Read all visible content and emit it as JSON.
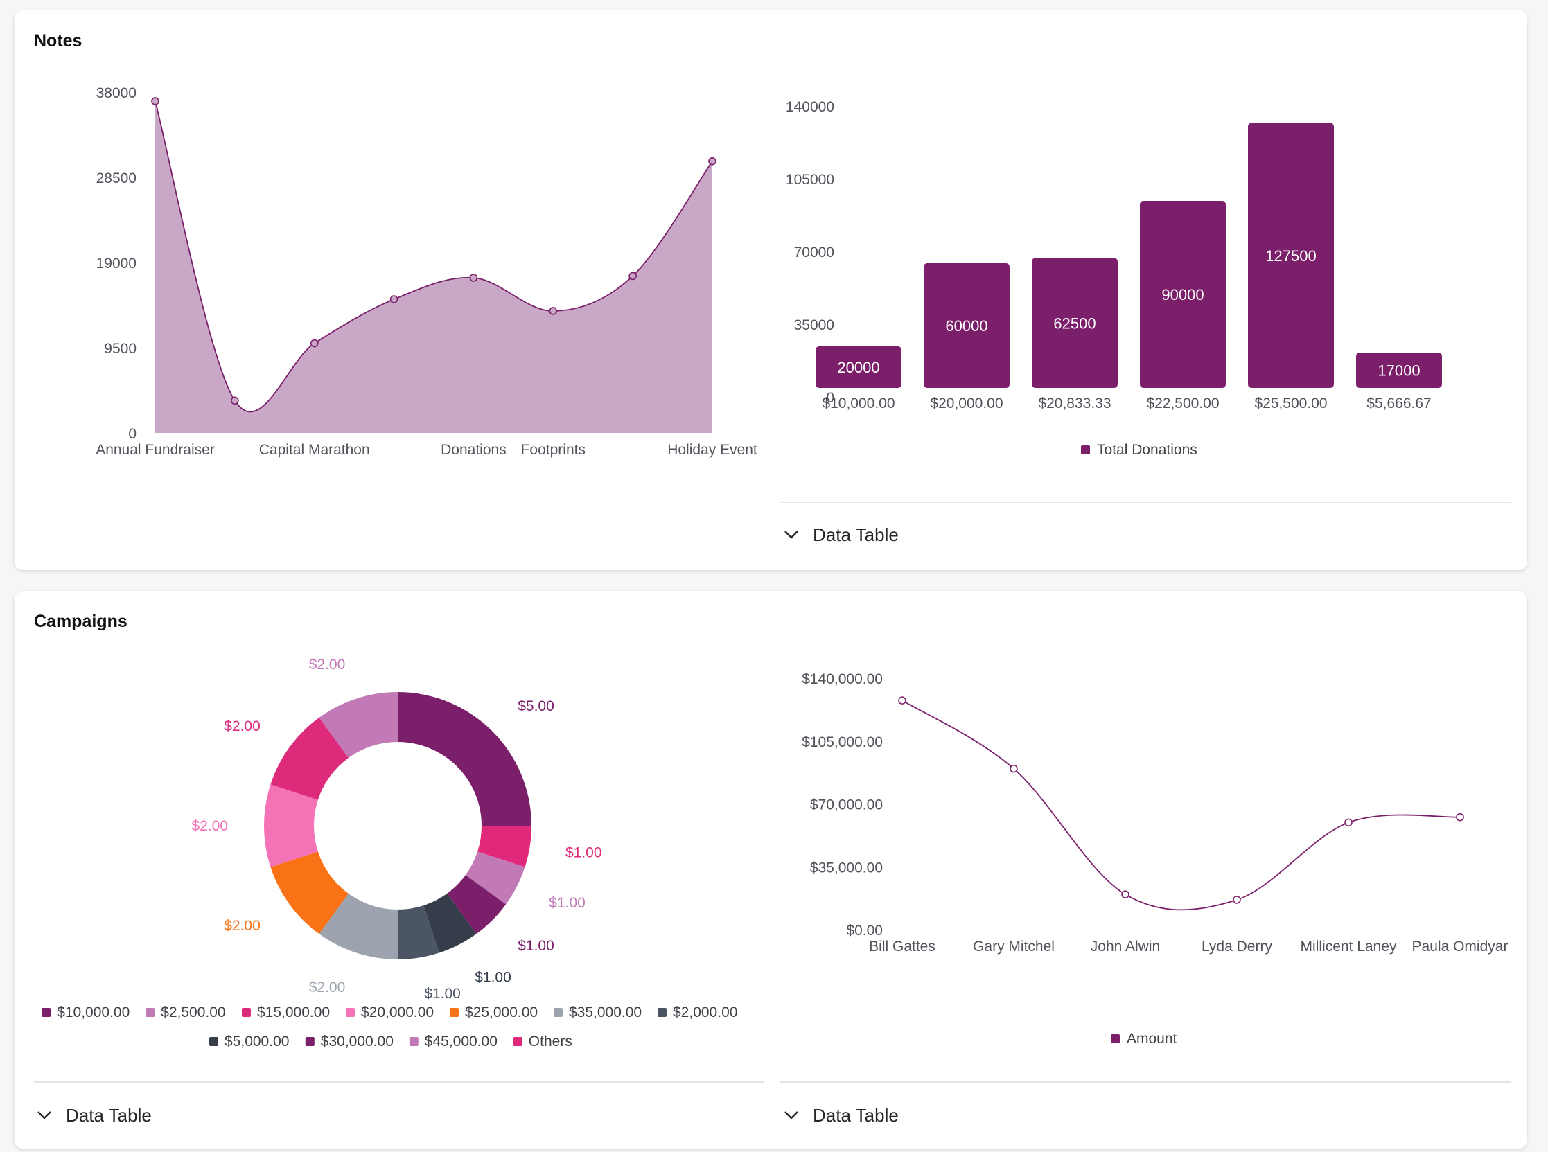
{
  "colors": {
    "plum": "#7b1f6a",
    "area_fill": "#c9a8c7",
    "axis_text": "#52525b"
  },
  "cards": {
    "notes": {
      "title": "Notes"
    },
    "campaigns": {
      "title": "Campaigns"
    }
  },
  "data_table_label": "Data Table",
  "chart_data": [
    {
      "id": "notes-area",
      "type": "area",
      "categories": [
        "Annual Fundraiser",
        "",
        "Capital Marathon",
        "",
        "Donations",
        "Footprints",
        "",
        "Holiday Event"
      ],
      "values": [
        37000,
        3600,
        10000,
        14900,
        17300,
        13600,
        17500,
        30300
      ],
      "y_ticks": [
        "0",
        "9500",
        "19000",
        "28500",
        "38000"
      ],
      "ylim": [
        0,
        38000
      ],
      "grid": false
    },
    {
      "id": "notes-bar",
      "type": "bar",
      "categories": [
        "$10,000.00",
        "$20,000.00",
        "$20,833.33",
        "$22,500.00",
        "$25,500.00",
        "$5,666.67"
      ],
      "values": [
        20000,
        60000,
        62500,
        90000,
        127500,
        17000
      ],
      "data_labels": [
        "20000",
        "60000",
        "62500",
        "90000",
        "127500",
        "17000"
      ],
      "y_ticks": [
        "0",
        "35000",
        "70000",
        "105000",
        "140000"
      ],
      "ylim": [
        0,
        140000
      ],
      "legend": {
        "position": "bottom",
        "entries": [
          "Total Donations"
        ]
      }
    },
    {
      "id": "campaigns-donut",
      "type": "pie",
      "slices": [
        {
          "label": "$10,000.00",
          "value": 5,
          "value_label": "$5.00",
          "color": "#7b1f6a"
        },
        {
          "label": "Others",
          "value": 1,
          "value_label": "$1.00",
          "color": "#e0297a"
        },
        {
          "label": "$45,000.00",
          "value": 1,
          "value_label": "$1.00",
          "color": "#c17ab6"
        },
        {
          "label": "$30,000.00",
          "value": 1,
          "value_label": "$1.00",
          "color": "#7b1f6a"
        },
        {
          "label": "$5,000.00",
          "value": 1,
          "value_label": "$1.00",
          "color": "#353d4a"
        },
        {
          "label": "$2,000.00",
          "value": 1,
          "value_label": "$1.00",
          "color": "#4b5563"
        },
        {
          "label": "$35,000.00",
          "value": 2,
          "value_label": "$2.00",
          "color": "#9ca3af"
        },
        {
          "label": "$25,000.00",
          "value": 2,
          "value_label": "$2.00",
          "color": "#f97316"
        },
        {
          "label": "$20,000.00",
          "value": 2,
          "value_label": "$2.00",
          "color": "#f472b6"
        },
        {
          "label": "$15,000.00",
          "value": 2,
          "value_label": "$2.00",
          "color": "#de2a7b"
        },
        {
          "label": "$2,500.00",
          "value": 2,
          "value_label": "$2.00",
          "color": "#c17ab6"
        }
      ],
      "legend": {
        "position": "bottom",
        "entries": [
          {
            "label": "$10,000.00",
            "color": "#7b1f6a"
          },
          {
            "label": "$2,500.00",
            "color": "#c17ab6"
          },
          {
            "label": "$15,000.00",
            "color": "#de2a7b"
          },
          {
            "label": "$20,000.00",
            "color": "#f472b6"
          },
          {
            "label": "$25,000.00",
            "color": "#f97316"
          },
          {
            "label": "$35,000.00",
            "color": "#9ca3af"
          },
          {
            "label": "$2,000.00",
            "color": "#4b5563"
          },
          {
            "label": "$5,000.00",
            "color": "#353d4a"
          },
          {
            "label": "$30,000.00",
            "color": "#7b1f6a"
          },
          {
            "label": "$45,000.00",
            "color": "#c17ab6"
          },
          {
            "label": "Others",
            "color": "#e0297a"
          }
        ]
      }
    },
    {
      "id": "campaigns-line",
      "type": "line",
      "categories": [
        "Bill Gattes",
        "Gary Mitchel",
        "John Alwin",
        "Lyda Derry",
        "Millicent Laney",
        "Paula Omidyar"
      ],
      "values": [
        128000,
        90000,
        20000,
        17000,
        60000,
        63000
      ],
      "y_ticks": [
        "$0.00",
        "$35,000.00",
        "$70,000.00",
        "$105,000.00",
        "$140,000.00"
      ],
      "ylim": [
        0,
        140000
      ],
      "legend": {
        "position": "bottom",
        "entries": [
          "Amount"
        ]
      }
    }
  ]
}
